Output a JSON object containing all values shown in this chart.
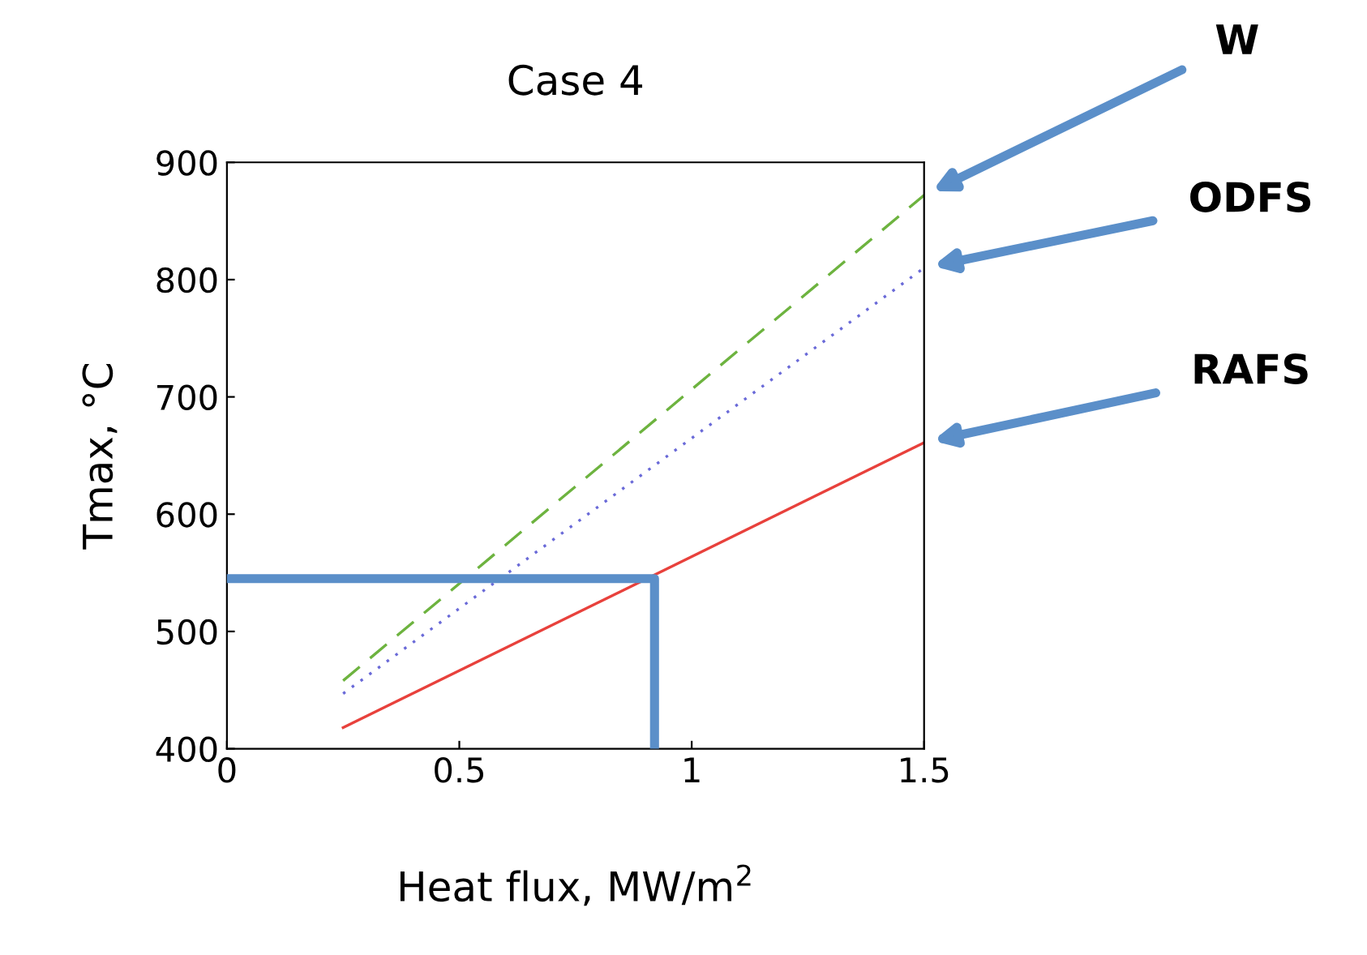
{
  "chart_data": {
    "type": "line",
    "title": "Case 4",
    "xlabel": "Heat flux, MW/m$^{2}$",
    "ylabel": "Tmax, °C",
    "xlim": [
      0,
      1.5
    ],
    "xticks": [
      0,
      0.5,
      1,
      1.5
    ],
    "ylim": [
      400,
      900
    ],
    "yticks": [
      400,
      500,
      600,
      700,
      800,
      900
    ],
    "grid": false,
    "legend": false,
    "series": [
      {
        "name": "W",
        "color": "#6db33f",
        "line_style": "dashed",
        "x": [
          0.25,
          1.5
        ],
        "values": [
          458,
          872
        ]
      },
      {
        "name": "ODFS",
        "color": "#6a6ad8",
        "line_style": "dotted",
        "x": [
          0.25,
          1.5
        ],
        "values": [
          447,
          810
        ]
      },
      {
        "name": "RAFS",
        "color": "#e8413c",
        "line_style": "solid",
        "x": [
          0.25,
          1.5
        ],
        "values": [
          418,
          661
        ]
      },
      {
        "color": "#5b8fc9",
        "line_style": "solid",
        "x": [
          0,
          0.92,
          0.92
        ],
        "values": [
          545,
          545,
          400
        ]
      }
    ]
  }
}
